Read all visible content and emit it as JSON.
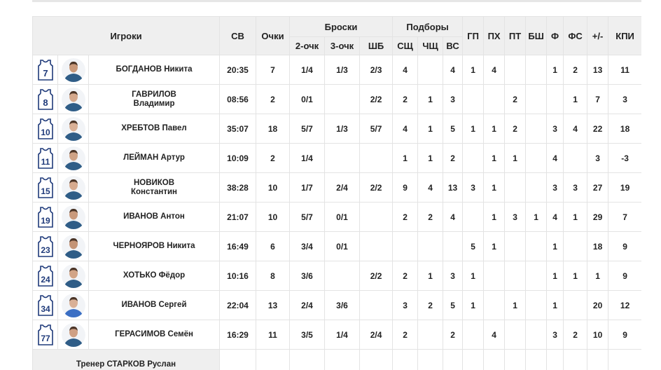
{
  "header": {
    "players": "Игроки",
    "min": "СВ",
    "pts": "Очки",
    "shots_group": "Броски",
    "rebounds_group": "Подборы",
    "two_pt": "2-очк",
    "three_pt": "3-очк",
    "ft": "ШБ",
    "def_reb": "СЩ",
    "off_reb": "ЧЩ",
    "tot_reb": "ВС",
    "ast": "ГП",
    "stl": "ПХ",
    "tov": "ПТ",
    "blk": "БШ",
    "fouls": "Ф",
    "fouls_drawn": "ФС",
    "plus_minus": "+/-",
    "eff": "КПИ"
  },
  "players": [
    {
      "number": "7",
      "name": [
        "БОГДАНОВ Никита"
      ],
      "min": "20:35",
      "pts": "7",
      "two": "1/4",
      "three": "1/3",
      "ft": "2/3",
      "dr": "4",
      "or": "",
      "tr": "4",
      "ast": "1",
      "stl": "4",
      "tov": "",
      "blk": "",
      "f": "1",
      "fd": "2",
      "pm": "13",
      "eff": "11",
      "shirt": "#2f5d87",
      "skin": "#c9997a"
    },
    {
      "number": "8",
      "name": [
        "ГАВРИЛОВ",
        "Владимир"
      ],
      "min": "08:56",
      "pts": "2",
      "two": "0/1",
      "three": "",
      "ft": "2/2",
      "dr": "2",
      "or": "1",
      "tr": "3",
      "ast": "",
      "stl": "",
      "tov": "2",
      "blk": "",
      "f": "",
      "fd": "1",
      "pm": "7",
      "eff": "3",
      "shirt": "#2f5d87",
      "skin": "#d4a88c"
    },
    {
      "number": "10",
      "name": [
        "ХРЕБТОВ Павел"
      ],
      "min": "35:07",
      "pts": "18",
      "two": "5/7",
      "three": "1/3",
      "ft": "5/7",
      "dr": "4",
      "or": "1",
      "tr": "5",
      "ast": "1",
      "stl": "1",
      "tov": "2",
      "blk": "",
      "f": "3",
      "fd": "4",
      "pm": "22",
      "eff": "18",
      "shirt": "#2f5d87",
      "skin": "#d9b096"
    },
    {
      "number": "11",
      "name": [
        "ЛЕЙМАН Артур"
      ],
      "min": "10:09",
      "pts": "2",
      "two": "1/4",
      "three": "",
      "ft": "",
      "dr": "1",
      "or": "1",
      "tr": "2",
      "ast": "",
      "stl": "1",
      "tov": "1",
      "blk": "",
      "f": "4",
      "fd": "",
      "pm": "3",
      "eff": "-3",
      "shirt": "#2f5d87",
      "skin": "#cfa386"
    },
    {
      "number": "15",
      "name": [
        "НОВИКОВ",
        "Константин"
      ],
      "min": "38:28",
      "pts": "10",
      "two": "1/7",
      "three": "2/4",
      "ft": "2/2",
      "dr": "9",
      "or": "4",
      "tr": "13",
      "ast": "3",
      "stl": "1",
      "tov": "",
      "blk": "",
      "f": "3",
      "fd": "3",
      "pm": "27",
      "eff": "19",
      "shirt": "#2f5d87",
      "skin": "#d6aa8e"
    },
    {
      "number": "19",
      "name": [
        "ИВАНОВ Антон"
      ],
      "min": "21:07",
      "pts": "10",
      "two": "5/7",
      "three": "0/1",
      "ft": "",
      "dr": "2",
      "or": "2",
      "tr": "4",
      "ast": "",
      "stl": "1",
      "tov": "3",
      "blk": "1",
      "f": "4",
      "fd": "1",
      "pm": "29",
      "eff": "7",
      "shirt": "#2f5d87",
      "skin": "#c99a7c"
    },
    {
      "number": "23",
      "name": [
        "ЧЕРНОЯРОВ Никита"
      ],
      "min": "16:49",
      "pts": "6",
      "two": "3/4",
      "three": "0/1",
      "ft": "",
      "dr": "",
      "or": "",
      "tr": "",
      "ast": "5",
      "stl": "1",
      "tov": "",
      "blk": "",
      "f": "1",
      "fd": "",
      "pm": "18",
      "eff": "9",
      "shirt": "#2f5d87",
      "skin": "#c49476"
    },
    {
      "number": "24",
      "name": [
        "ХОТЬКО Фёдор"
      ],
      "min": "10:16",
      "pts": "8",
      "two": "3/6",
      "three": "",
      "ft": "2/2",
      "dr": "2",
      "or": "1",
      "tr": "3",
      "ast": "1",
      "stl": "",
      "tov": "",
      "blk": "",
      "f": "1",
      "fd": "1",
      "pm": "1",
      "eff": "9",
      "shirt": "#2f5d87",
      "skin": "#d2a486"
    },
    {
      "number": "34",
      "name": [
        "ИВАНОВ Сергей"
      ],
      "min": "22:04",
      "pts": "13",
      "two": "2/4",
      "three": "3/6",
      "ft": "",
      "dr": "3",
      "or": "2",
      "tr": "5",
      "ast": "1",
      "stl": "",
      "tov": "1",
      "blk": "",
      "f": "1",
      "fd": "",
      "pm": "20",
      "eff": "12",
      "shirt": "#3b6fc4",
      "skin": "#d9b096"
    },
    {
      "number": "77",
      "name": [
        "ГЕРАСИМОВ Семён"
      ],
      "min": "16:29",
      "pts": "11",
      "two": "3/5",
      "three": "1/4",
      "ft": "2/4",
      "dr": "2",
      "or": "",
      "tr": "2",
      "ast": "",
      "stl": "4",
      "tov": "",
      "blk": "",
      "f": "3",
      "fd": "2",
      "pm": "10",
      "eff": "9",
      "shirt": "#2f5d87",
      "skin": "#cfa084"
    }
  ],
  "coach": "Тренер СТАРКОВ Руслан",
  "colors": {
    "header_bg": "#efefef",
    "grid": "#e3e3e3",
    "jersey_stroke": "#1f3a7a"
  },
  "icons": {
    "jersey": "basketball-jersey-icon",
    "photo": "player-photo"
  }
}
